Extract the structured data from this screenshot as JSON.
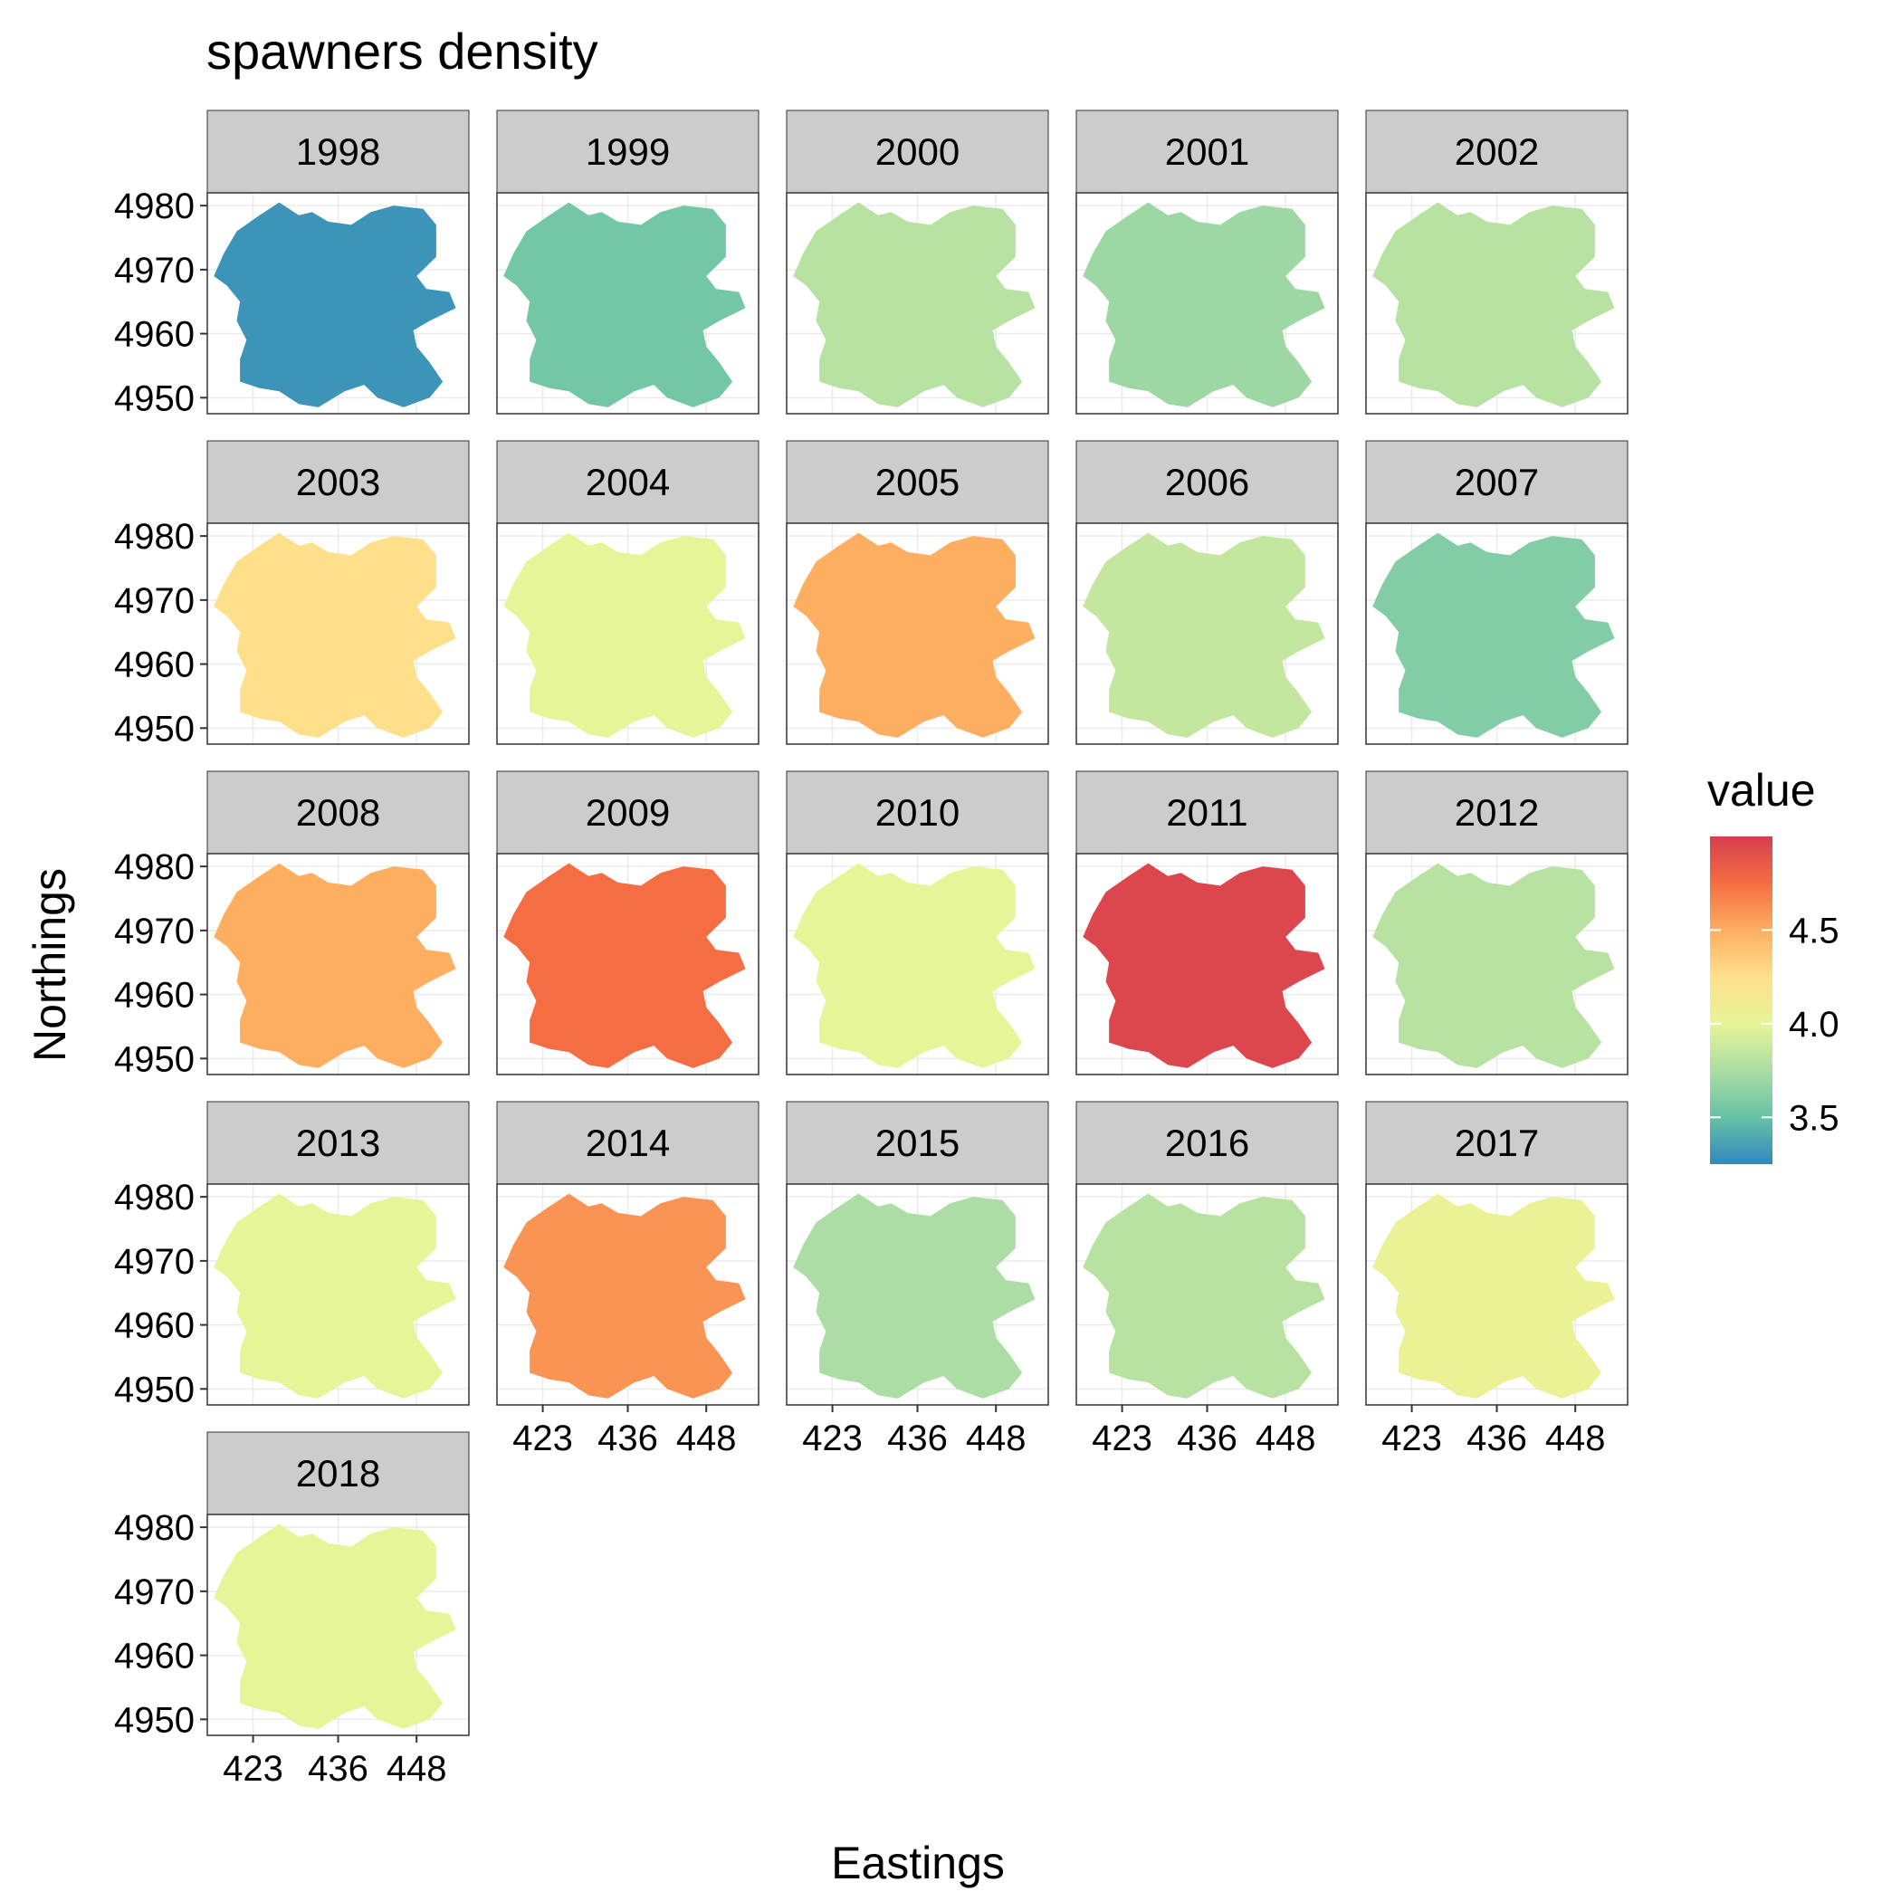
{
  "chart_data": {
    "type": "heatmap",
    "subtype": "faceted spatial point map",
    "title": "spawners density",
    "xlabel": "Eastings",
    "ylabel": "Northings",
    "x_ticks": [
      423,
      436,
      448
    ],
    "y_ticks": [
      4950,
      4960,
      4970,
      4980
    ],
    "xlim": [
      416,
      456
    ],
    "ylim": [
      4947.5,
      4982
    ],
    "grid": true,
    "facet_layout": "5 columns x 5 rows",
    "legend": {
      "title": "value",
      "position": "right",
      "ticks": [
        3.5,
        4.0,
        4.5
      ],
      "tick_labels": [
        "3.5",
        "4.0",
        "4.5"
      ],
      "range": [
        3.25,
        5.0
      ],
      "palette": [
        "#3288bd",
        "#66c2a5",
        "#abdda4",
        "#e6f598",
        "#fee08b",
        "#fdae61",
        "#f46d43",
        "#d53e4f"
      ]
    },
    "panels": [
      {
        "year": "1998",
        "mean_value": 3.3
      },
      {
        "year": "1999",
        "mean_value": 3.55
      },
      {
        "year": "2000",
        "mean_value": 3.8
      },
      {
        "year": "2001",
        "mean_value": 3.7
      },
      {
        "year": "2002",
        "mean_value": 3.8
      },
      {
        "year": "2003",
        "mean_value": 4.25
      },
      {
        "year": "2004",
        "mean_value": 4.0
      },
      {
        "year": "2005",
        "mean_value": 4.5
      },
      {
        "year": "2006",
        "mean_value": 3.85
      },
      {
        "year": "2007",
        "mean_value": 3.6
      },
      {
        "year": "2008",
        "mean_value": 4.5
      },
      {
        "year": "2009",
        "mean_value": 4.75
      },
      {
        "year": "2010",
        "mean_value": 4.0
      },
      {
        "year": "2011",
        "mean_value": 4.95
      },
      {
        "year": "2012",
        "mean_value": 3.8
      },
      {
        "year": "2013",
        "mean_value": 4.0
      },
      {
        "year": "2014",
        "mean_value": 4.6
      },
      {
        "year": "2015",
        "mean_value": 3.75
      },
      {
        "year": "2016",
        "mean_value": 3.8
      },
      {
        "year": "2017",
        "mean_value": 4.05
      },
      {
        "year": "2018",
        "mean_value": 4.0
      }
    ]
  }
}
